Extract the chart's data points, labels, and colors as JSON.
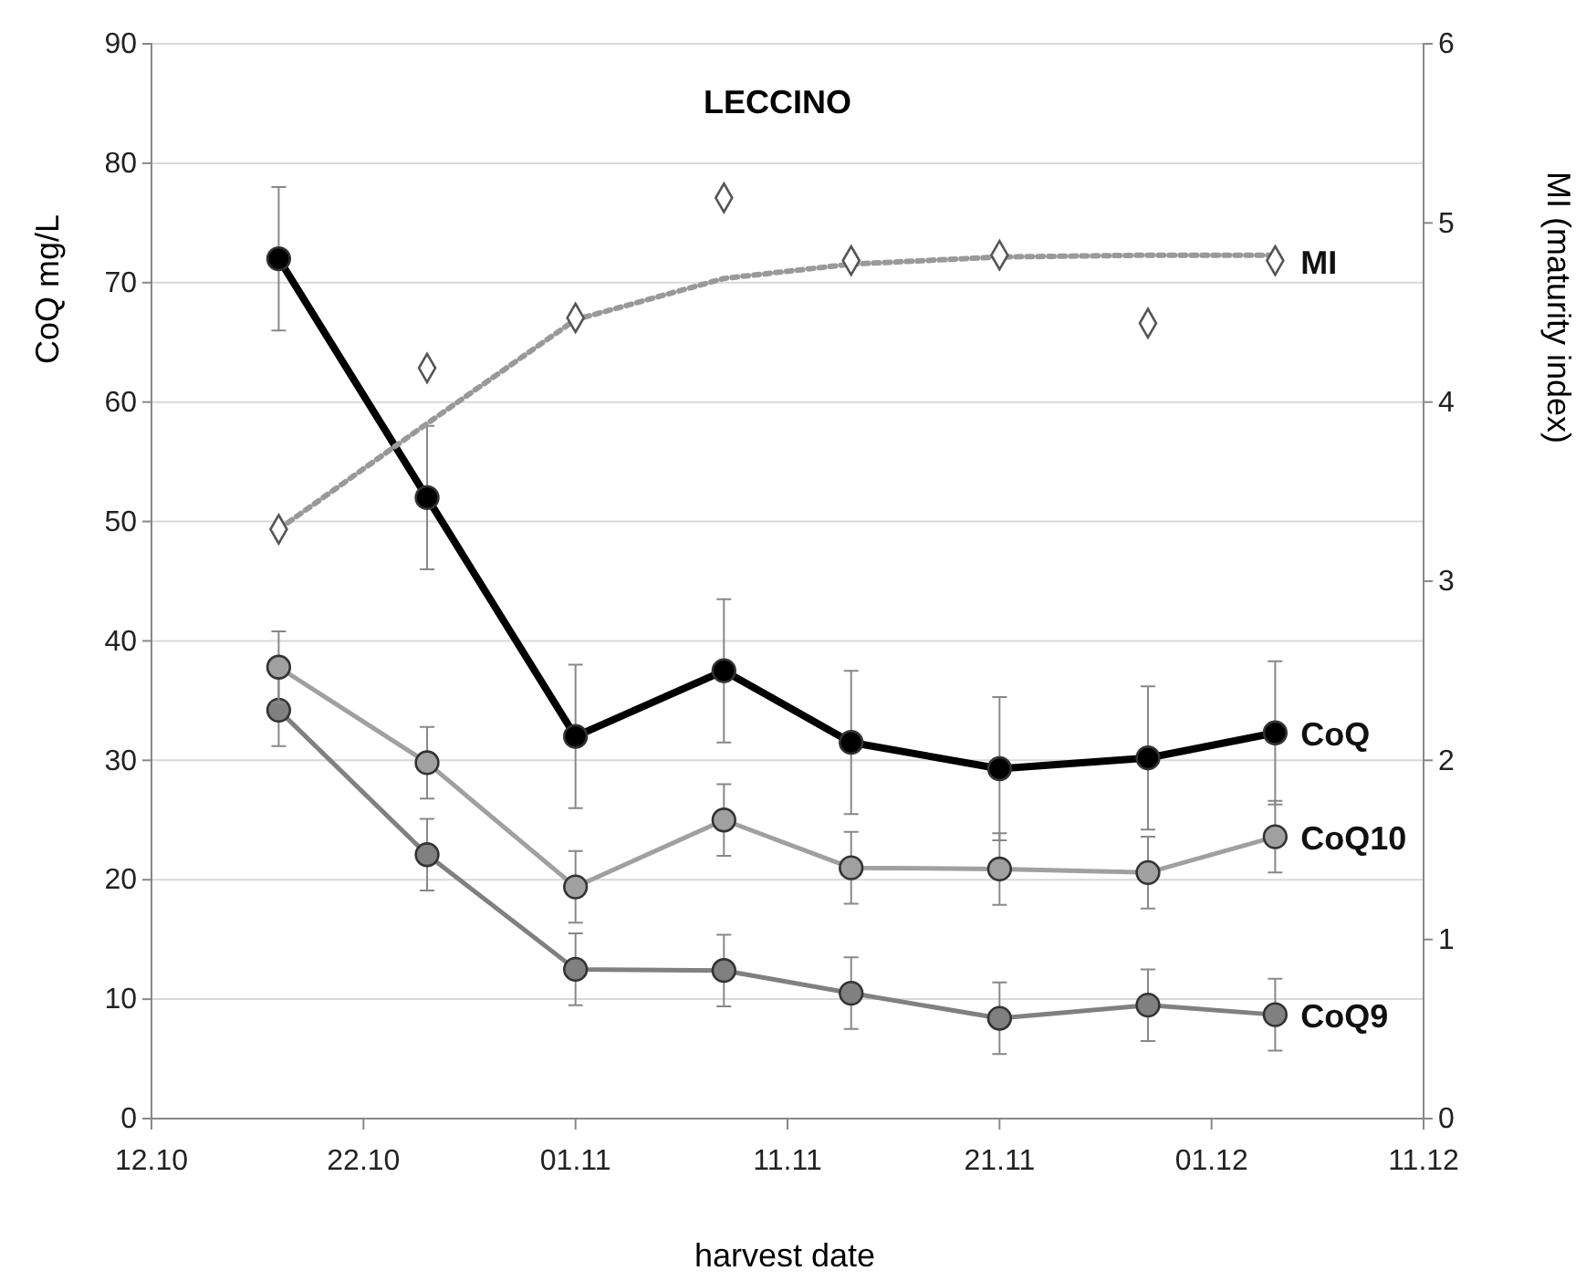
{
  "chart_data": {
    "type": "line",
    "title": "LECCINO",
    "xlabel": "harvest date",
    "ylabel": "CoQ mg/L",
    "y2label": "MI (maturity index)",
    "x": [
      "--10-18",
      "--10-25",
      "--11-01",
      "--11-08",
      "--11-14",
      "--11-21",
      "--11-28",
      "--12-04"
    ],
    "series": [
      {
        "name": "CoQ9",
        "color": "#808080",
        "marker": "circle",
        "values": [
          34.2,
          22.1,
          12.5,
          12.4,
          10.5,
          8.4,
          9.5,
          8.7
        ],
        "errors": [
          3,
          3,
          3,
          3,
          3,
          3,
          3,
          3
        ]
      },
      {
        "name": "CoQ10",
        "color": "#a0a0a0",
        "marker": "circle",
        "values": [
          37.8,
          29.8,
          19.4,
          25,
          21,
          20.9,
          20.6,
          23.6
        ],
        "errors": [
          3,
          3,
          3,
          3,
          3,
          3,
          3,
          3
        ]
      },
      {
        "name": "CoQ",
        "color": "#000000",
        "marker": "circle",
        "values": [
          72,
          52,
          32,
          37.5,
          31.5,
          29.3,
          30.2,
          32.3
        ],
        "errors": [
          6,
          6,
          6,
          6,
          6,
          6,
          6,
          6
        ]
      },
      {
        "type": "line",
        "axis": "y2",
        "color": "#999999",
        "line_style": "dotted",
        "marker": "none",
        "values": [
          3.29,
          3.88,
          4.46,
          4.69,
          4.77,
          4.81,
          4.82,
          4.82
        ]
      },
      {
        "name": "MI",
        "type": "scatter",
        "axis": "y2",
        "color": "#555555",
        "marker": "diamond",
        "values": [
          3.29,
          4.19,
          4.47,
          5.14,
          4.79,
          4.82,
          4.44,
          4.79
        ]
      }
    ],
    "xlim": [
      "--10-12",
      "--12-11"
    ],
    "xticks": [
      {
        "value": "--10-12",
        "label": "12.10"
      },
      {
        "value": "--10-22",
        "label": "22.10"
      },
      {
        "value": "--11-01",
        "label": "01.11"
      },
      {
        "value": "--11-11",
        "label": "11.11"
      },
      {
        "value": "--11-21",
        "label": "21.11"
      },
      {
        "value": "--12-01",
        "label": "01.12"
      },
      {
        "value": "--12-11",
        "label": "11.12"
      }
    ],
    "ylim": [
      0,
      90
    ],
    "yticks": [
      0,
      10,
      20,
      30,
      40,
      50,
      60,
      70,
      80,
      90
    ],
    "y2lim": [
      0,
      6
    ],
    "y2ticks": [
      0,
      1,
      2,
      3,
      4,
      5,
      6
    ],
    "grid": "y"
  }
}
